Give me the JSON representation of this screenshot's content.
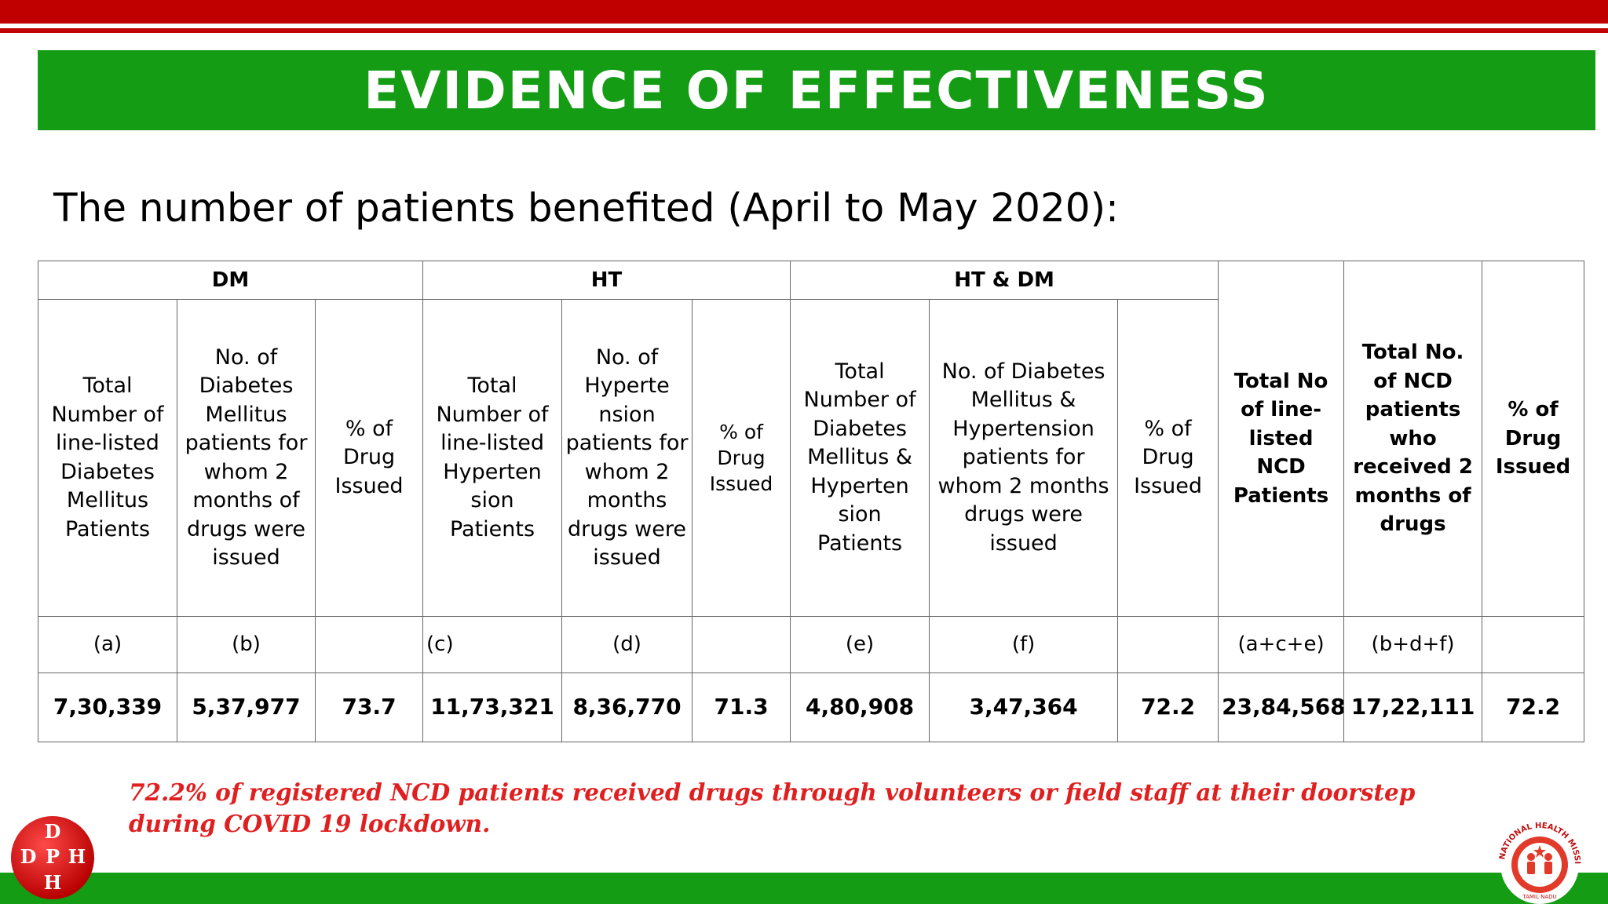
{
  "title": "EVIDENCE OF EFFECTIVENESS",
  "subtitle": "The number of patients benefited (April to May 2020):",
  "table": {
    "groups": {
      "dm": "DM",
      "ht": "HT",
      "htdm": "HT & DM"
    },
    "headers": {
      "dm_total": "Total Number of line-listed Diabetes Mellitus Patients",
      "dm_issued": "No. of Diabetes Mellitus patients for whom 2 months of drugs were issued",
      "dm_pct": "% of Drug Issued",
      "ht_total": "Total Number of line-listed Hyperten sion Patients",
      "ht_issued": "No. of Hyperte nsion patients for whom 2 months drugs were issued",
      "ht_pct": "% of Drug Issued",
      "htdm_total": "Total Number of Diabetes Mellitus & Hyperten sion Patients",
      "htdm_issued": "No. of Diabetes Mellitus & Hypertension patients for whom 2 months drugs were issued",
      "htdm_pct": "% of Drug Issued",
      "ncd_total": "Total No of line-listed NCD Patients",
      "ncd_issued": "Total No. of NCD patients who received 2 months of drugs",
      "ncd_pct": "% of Drug Issued"
    },
    "letters": {
      "a": "(a)",
      "b": "(b)",
      "c": "(c)",
      "d": "(d)",
      "e": "(e)",
      "f": "(f)",
      "ace": "(a+c+e)",
      "bdf": "(b+d+f)"
    },
    "values": {
      "dm_total": "7,30,339",
      "dm_issued": "5,37,977",
      "dm_pct": "73.7",
      "ht_total": "11,73,321",
      "ht_issued": "8,36,770",
      "ht_pct": "71.3",
      "htdm_total": "4,80,908",
      "htdm_issued": "3,47,364",
      "htdm_pct": "72.2",
      "ncd_total": "23,84,568",
      "ncd_issued": "17,22,111",
      "ncd_pct": "72.2"
    }
  },
  "footnote": "72.2% of registered NCD patients received drugs through volunteers or field staff at their doorstep during COVID 19 lockdown.",
  "logos": {
    "dph_letters": [
      "D",
      "D",
      "P",
      "H",
      "H"
    ],
    "nhm_text": "NATIONAL HEALTH MISSION",
    "nhm_sub": "TAMIL NADU"
  },
  "colors": {
    "red": "#c00000",
    "green": "#149c14",
    "footnote_red": "#e02020"
  }
}
